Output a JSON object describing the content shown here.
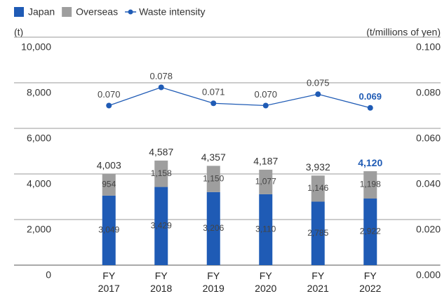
{
  "chart_data": {
    "type": "bar",
    "y_label": "(t)",
    "y2_label": "(t/millions of yen)",
    "categories": [
      "FY\n2017",
      "FY\n2018",
      "FY\n2019",
      "FY\n2020",
      "FY\n2021",
      "FY\n2022"
    ],
    "series": [
      {
        "name": "Japan",
        "color": "#1f5bb5",
        "values": [
          3049,
          3429,
          3206,
          3110,
          2785,
          2922
        ],
        "value_labels": [
          "3,049",
          "3,429",
          "3,206",
          "3,110",
          "2,785",
          "2,922"
        ]
      },
      {
        "name": "Overseas",
        "color": "#9e9e9e",
        "values": [
          954,
          1158,
          1150,
          1077,
          1146,
          1198
        ],
        "value_labels": [
          "954",
          "1,158",
          "1,150",
          "1,077",
          "1,146",
          "1,198"
        ]
      },
      {
        "name": "Waste intensity",
        "type": "line",
        "axis": "y2",
        "color": "#1f5bb5",
        "values": [
          0.07,
          0.078,
          0.071,
          0.07,
          0.075,
          0.069
        ],
        "value_labels": [
          "0.070",
          "0.078",
          "0.071",
          "0.070",
          "0.075",
          "0.069"
        ]
      }
    ],
    "totals": {
      "values": [
        4003,
        4587,
        4357,
        4187,
        3932,
        4120
      ],
      "value_labels": [
        "4,003",
        "4,587",
        "4,357",
        "4,187",
        "3,932",
        "4,120"
      ]
    },
    "ylim": [
      0,
      10000
    ],
    "yticks": [
      0,
      {
        "value": 2000,
        "label": "2,000"
      },
      {
        "value": 4000,
        "label": "4,000"
      },
      {
        "value": 6000,
        "label": "6,000"
      },
      {
        "value": 8000,
        "label": "8,000"
      },
      {
        "value": 10000,
        "label": "10,000"
      }
    ],
    "y2lim": [
      0,
      0.1
    ],
    "y2ticks": [
      {
        "value": 0,
        "label": "0.000"
      },
      {
        "value": 0.02,
        "label": "0.020"
      },
      {
        "value": 0.04,
        "label": "0.040"
      },
      {
        "value": 0.06,
        "label": "0.060"
      },
      {
        "value": 0.08,
        "label": "0.080"
      },
      {
        "value": 0.1,
        "label": "0.100"
      }
    ],
    "grid": true,
    "legend": "top-left"
  }
}
